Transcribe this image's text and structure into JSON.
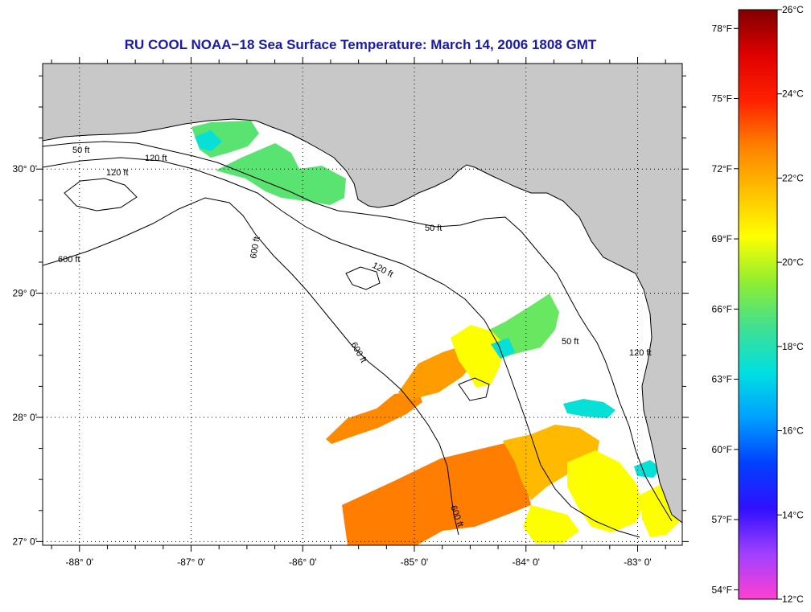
{
  "title": "RU COOL  NOAA−18  Sea Surface Temperature:  March 14, 2006 1808 GMT",
  "colors": {
    "title": "#1a1aa8",
    "land": "#c8c8c8",
    "ocean": "#ffffff",
    "frame": "#000000",
    "grid": "#000000"
  },
  "map": {
    "lon_range": [
      -88.33,
      -82.6
    ],
    "lat_range": [
      26.97,
      30.85
    ],
    "lon_ticks": [
      {
        "value": -88,
        "label": "-88° 0'"
      },
      {
        "value": -87,
        "label": "-87° 0'"
      },
      {
        "value": -86,
        "label": "-86° 0'"
      },
      {
        "value": -85,
        "label": "-85° 0'"
      },
      {
        "value": -84,
        "label": "-84° 0'"
      },
      {
        "value": -83,
        "label": "-83° 0'"
      }
    ],
    "lat_ticks": [
      {
        "value": 30,
        "label": "30° 0'"
      },
      {
        "value": 29,
        "label": "29° 0'"
      },
      {
        "value": 28,
        "label": "28° 0'"
      },
      {
        "value": 27,
        "label": "27° 0'"
      }
    ],
    "contour_labels": [
      "50 ft",
      "120 ft",
      "600 ft"
    ]
  },
  "colorbar": {
    "celsius_ticks": [
      {
        "value": 26,
        "label": "26°C"
      },
      {
        "value": 24,
        "label": "24°C"
      },
      {
        "value": 22,
        "label": "22°C"
      },
      {
        "value": 20,
        "label": "20°C"
      },
      {
        "value": 18,
        "label": "18°C"
      },
      {
        "value": 16,
        "label": "16°C"
      },
      {
        "value": 14,
        "label": "14°C"
      },
      {
        "value": 12,
        "label": "12°C"
      }
    ],
    "fahrenheit_ticks": [
      {
        "value": 78,
        "label": "78°F"
      },
      {
        "value": 75,
        "label": "75°F"
      },
      {
        "value": 72,
        "label": "72°F"
      },
      {
        "value": 69,
        "label": "69°F"
      },
      {
        "value": 66,
        "label": "66°F"
      },
      {
        "value": 63,
        "label": "63°F"
      },
      {
        "value": 60,
        "label": "60°F"
      },
      {
        "value": 57,
        "label": "57°F"
      },
      {
        "value": 54,
        "label": "54°F"
      }
    ],
    "range_celsius": [
      12,
      26
    ],
    "gradient_stops": [
      "#ff40d0",
      "#a040ff",
      "#3010ff",
      "#0040ff",
      "#00a0ff",
      "#00e0e0",
      "#40e090",
      "#90ee30",
      "#ffff00",
      "#ffc000",
      "#ff8000",
      "#ff2000",
      "#e00000",
      "#800000"
    ]
  },
  "sst_patches": [
    {
      "name": "sst-patch-southern-main",
      "temp_c": 22.8
    },
    {
      "name": "sst-patch-tongue-28n",
      "temp_c": 22.6
    },
    {
      "name": "sst-patch-middle-orange",
      "temp_c": 22.3
    },
    {
      "name": "sst-patch-southeast-orange",
      "temp_c": 21.8
    },
    {
      "name": "sst-patch-big-bend-green",
      "temp_c": 19.0
    },
    {
      "name": "sst-patch-panhandle-green",
      "temp_c": 18.8
    },
    {
      "name": "sst-patch-yellow-mix",
      "temp_c": 20.6
    },
    {
      "name": "sst-patch-coastal-cyan",
      "temp_c": 17.5
    }
  ]
}
